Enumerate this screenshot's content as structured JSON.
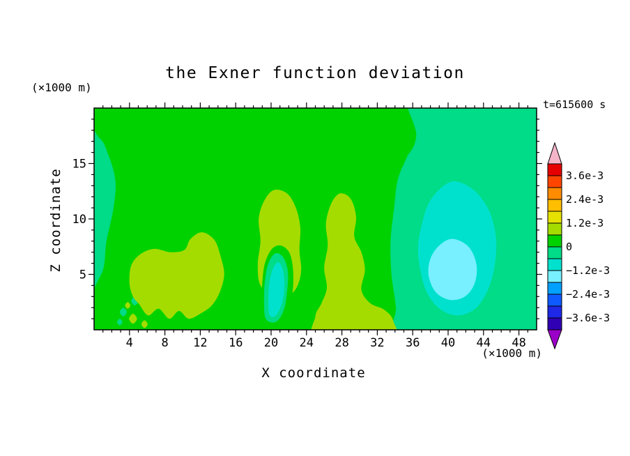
{
  "title": "the Exner function deviation",
  "annotations": {
    "time_label": "t=615600 s",
    "x_unit_label": "(×1000 m)",
    "z_unit_label": "(×1000 m)"
  },
  "axes": {
    "x": {
      "label": "X coordinate",
      "min": 0,
      "max": 50,
      "major_ticks": [
        4,
        8,
        12,
        16,
        20,
        24,
        28,
        32,
        36,
        40,
        44,
        48
      ],
      "minor_step": 1
    },
    "z": {
      "label": "Z coordinate",
      "min": 0,
      "max": 20,
      "major_ticks": [
        5,
        10,
        15
      ],
      "minor_step": 1
    }
  },
  "colorbar": {
    "segments": [
      {
        "from": -0.0042,
        "to": -0.0036,
        "color": "#2F00B4"
      },
      {
        "from": -0.0036,
        "to": -0.003,
        "color": "#1E28E6"
      },
      {
        "from": -0.003,
        "to": -0.0024,
        "color": "#0F5AFF"
      },
      {
        "from": -0.0024,
        "to": -0.0018,
        "color": "#00A0FF"
      },
      {
        "from": -0.0018,
        "to": -0.0012,
        "color": "#78F0FF"
      },
      {
        "from": -0.0012,
        "to": -0.0006,
        "color": "#00E1CD"
      },
      {
        "from": -0.0006,
        "to": 0,
        "color": "#00DC87"
      },
      {
        "from": 0,
        "to": 0.0006,
        "color": "#00D200"
      },
      {
        "from": 0.0006,
        "to": 0.0012,
        "color": "#A5DC00"
      },
      {
        "from": 0.0012,
        "to": 0.0018,
        "color": "#E6E100"
      },
      {
        "from": 0.0018,
        "to": 0.0024,
        "color": "#FFBE00"
      },
      {
        "from": 0.0024,
        "to": 0.003,
        "color": "#FF8C00"
      },
      {
        "from": 0.003,
        "to": 0.0036,
        "color": "#FF4600"
      },
      {
        "from": 0.0036,
        "to": 0.0042,
        "color": "#E60000"
      }
    ],
    "arrow_top_color": "#F5B4C8",
    "arrow_bottom_color": "#9B00C8",
    "labels": [
      {
        "text": "3.6e-3",
        "boundary": 13
      },
      {
        "text": "2.4e-3",
        "boundary": 11
      },
      {
        "text": "1.2e-3",
        "boundary": 9
      },
      {
        "text": "0",
        "boundary": 7
      },
      {
        "text": "−1.2e-3",
        "boundary": 5
      },
      {
        "text": "−2.4e-3",
        "boundary": 3
      },
      {
        "text": "−3.6e-3",
        "boundary": 1
      }
    ]
  },
  "chart_data": {
    "type": "contour",
    "field": "Exner function deviation",
    "time_seconds": 615600,
    "x_range": [
      0,
      50
    ],
    "z_range": [
      0,
      20
    ],
    "x_unit": "×1000 m",
    "z_unit": "×1000 m",
    "contour_interval": 0.0006,
    "contour_levels": [
      -0.0042,
      -0.0036,
      -0.003,
      -0.0024,
      -0.0018,
      -0.0012,
      -0.0006,
      0,
      0.0006,
      0.0012,
      0.0018,
      0.0024,
      0.003,
      0.0036,
      0.0042
    ],
    "background": {
      "band": "0 to 0.0006",
      "color": "#00D200"
    },
    "regions": [
      {
        "name": "right-negative-area",
        "band": "-0.0006 to 0",
        "color": "#00DC87",
        "points": [
          [
            34.6,
            -3
          ],
          [
            34.1,
            2
          ],
          [
            33.6,
            5
          ],
          [
            33.5,
            8
          ],
          [
            33.9,
            11
          ],
          [
            34.3,
            13.5
          ],
          [
            35.3,
            15.5
          ],
          [
            36.4,
            17.5
          ],
          [
            36.3,
            23
          ],
          [
            54,
            24
          ],
          [
            54,
            -4
          ]
        ]
      },
      {
        "name": "right-cyan-blob",
        "band": "-0.0012 to -0.0006",
        "color": "#00E1CD",
        "points": [
          [
            40.8,
            13.4
          ],
          [
            39.2,
            12.8
          ],
          [
            37.8,
            11.4
          ],
          [
            37.0,
            9.4
          ],
          [
            36.6,
            7.4
          ],
          [
            36.9,
            5.2
          ],
          [
            37.7,
            3.2
          ],
          [
            39.2,
            1.8
          ],
          [
            41.2,
            1.3
          ],
          [
            43.2,
            2.0
          ],
          [
            44.6,
            3.8
          ],
          [
            45.3,
            6.0
          ],
          [
            45.4,
            8.4
          ],
          [
            44.6,
            10.8
          ],
          [
            42.9,
            12.6
          ]
        ]
      },
      {
        "name": "right-cyan-core",
        "band": "-0.0018 to -0.0012",
        "color": "#78F0FF",
        "points": [
          [
            40.5,
            8.2
          ],
          [
            39.0,
            7.6
          ],
          [
            38.0,
            6.4
          ],
          [
            37.8,
            4.9
          ],
          [
            38.6,
            3.4
          ],
          [
            40.2,
            2.7
          ],
          [
            41.9,
            3.0
          ],
          [
            43.0,
            4.2
          ],
          [
            43.2,
            5.9
          ],
          [
            42.3,
            7.5
          ]
        ]
      },
      {
        "name": "left-edge-strip",
        "band": "-0.0006 to 0",
        "color": "#00DC87",
        "points": [
          [
            -2,
            3.0
          ],
          [
            0.8,
            5.0
          ],
          [
            1.4,
            8.0
          ],
          [
            2.2,
            11.0
          ],
          [
            2.4,
            13.5
          ],
          [
            1.6,
            15.8
          ],
          [
            0.6,
            17.3
          ],
          [
            -2,
            18.5
          ]
        ]
      },
      {
        "name": "speck-teal-1",
        "band": "-0.0006 to 0",
        "color": "#00DC87",
        "points": [
          [
            3.3,
            2.0
          ],
          [
            3.7,
            1.6
          ],
          [
            3.3,
            1.2
          ],
          [
            2.9,
            1.6
          ]
        ]
      },
      {
        "name": "speck-teal-2",
        "band": "-0.0006 to 0",
        "color": "#00DC87",
        "points": [
          [
            4.6,
            3.0
          ],
          [
            5.0,
            2.6
          ],
          [
            4.6,
            2.2
          ],
          [
            4.2,
            2.6
          ]
        ]
      },
      {
        "name": "speck-teal-3",
        "band": "-0.0006 to 0",
        "color": "#00DC87",
        "points": [
          [
            2.9,
            1.0
          ],
          [
            3.2,
            0.7
          ],
          [
            2.9,
            0.4
          ],
          [
            2.6,
            0.7
          ]
        ]
      },
      {
        "name": "yellowgreen-left-blob",
        "band": "0.0006 to 0.0012",
        "color": "#A5DC00",
        "points": [
          [
            4.0,
            4.2
          ],
          [
            4.2,
            5.8
          ],
          [
            5.2,
            6.8
          ],
          [
            6.8,
            7.3
          ],
          [
            8.6,
            7.0
          ],
          [
            10.2,
            7.2
          ],
          [
            10.9,
            8.2
          ],
          [
            12.2,
            8.8
          ],
          [
            13.6,
            8.1
          ],
          [
            14.3,
            6.6
          ],
          [
            14.7,
            5.0
          ],
          [
            14.2,
            3.4
          ],
          [
            13.3,
            2.2
          ],
          [
            12.1,
            1.5
          ],
          [
            10.7,
            1.0
          ],
          [
            9.6,
            1.7
          ],
          [
            8.5,
            1.0
          ],
          [
            7.3,
            1.9
          ],
          [
            6.1,
            1.3
          ],
          [
            5.1,
            2.3
          ],
          [
            4.4,
            3.0
          ]
        ]
      },
      {
        "name": "speck-yellowgreen-1",
        "band": "0.0006 to 0.0012",
        "color": "#A5DC00",
        "points": [
          [
            4.4,
            1.45
          ],
          [
            4.85,
            1.0
          ],
          [
            4.4,
            0.55
          ],
          [
            3.95,
            1.0
          ]
        ]
      },
      {
        "name": "speck-yellowgreen-2",
        "band": "0.0006 to 0.0012",
        "color": "#A5DC00",
        "points": [
          [
            5.7,
            0.85
          ],
          [
            6.05,
            0.5
          ],
          [
            5.7,
            0.15
          ],
          [
            5.35,
            0.5
          ]
        ]
      },
      {
        "name": "speck-yellowgreen-3",
        "band": "0.0006 to 0.0012",
        "color": "#A5DC00",
        "points": [
          [
            3.8,
            2.5
          ],
          [
            4.1,
            2.2
          ],
          [
            3.8,
            1.9
          ],
          [
            3.5,
            2.2
          ]
        ]
      },
      {
        "name": "yellowgreen-mid-arch",
        "band": "0.0006 to 0.0012",
        "color": "#A5DC00",
        "points": [
          [
            18.7,
            4.2
          ],
          [
            18.5,
            6.0
          ],
          [
            18.8,
            8.0
          ],
          [
            18.6,
            10.0
          ],
          [
            19.2,
            11.6
          ],
          [
            20.3,
            12.6
          ],
          [
            21.8,
            12.3
          ],
          [
            22.8,
            11.0
          ],
          [
            23.3,
            9.2
          ],
          [
            23.2,
            7.2
          ],
          [
            23.4,
            5.4
          ],
          [
            23.0,
            4.0
          ],
          [
            22.2,
            3.2
          ],
          [
            21.0,
            2.9
          ],
          [
            19.8,
            3.1
          ]
        ]
      },
      {
        "name": "mid-green-gap",
        "band": "0 to 0.0006",
        "color": "#00D200",
        "points": [
          [
            19.1,
            0.4
          ],
          [
            18.9,
            2.2
          ],
          [
            19.0,
            4.2
          ],
          [
            19.3,
            6.0
          ],
          [
            20.1,
            7.3
          ],
          [
            21.1,
            7.6
          ],
          [
            22.1,
            6.9
          ],
          [
            22.5,
            5.2
          ],
          [
            22.4,
            3.2
          ],
          [
            21.9,
            1.4
          ],
          [
            20.6,
            0.2
          ]
        ]
      },
      {
        "name": "mid-teal-blob",
        "band": "-0.0006 to 0",
        "color": "#00DC87",
        "points": [
          [
            19.4,
            1.0
          ],
          [
            19.2,
            2.6
          ],
          [
            19.3,
            4.4
          ],
          [
            19.7,
            6.0
          ],
          [
            20.5,
            6.9
          ],
          [
            21.4,
            6.5
          ],
          [
            21.9,
            5.2
          ],
          [
            21.8,
            3.4
          ],
          [
            21.4,
            1.7
          ],
          [
            20.5,
            0.7
          ]
        ]
      },
      {
        "name": "mid-cyan-blob",
        "band": "-0.0012 to -0.0006",
        "color": "#00E1CD",
        "points": [
          [
            19.8,
            1.4
          ],
          [
            19.7,
            2.8
          ],
          [
            19.8,
            4.2
          ],
          [
            20.2,
            5.5
          ],
          [
            20.8,
            6.1
          ],
          [
            21.3,
            5.5
          ],
          [
            21.5,
            4.3
          ],
          [
            21.4,
            3.0
          ],
          [
            21.0,
            1.9
          ],
          [
            20.4,
            1.2
          ]
        ]
      },
      {
        "name": "yellowgreen-right-blob",
        "band": "0.0006 to 0.0012",
        "color": "#A5DC00",
        "points": [
          [
            25.2,
            -1
          ],
          [
            25.0,
            1.2
          ],
          [
            25.7,
            2.4
          ],
          [
            26.3,
            3.8
          ],
          [
            26.0,
            5.6
          ],
          [
            26.4,
            7.6
          ],
          [
            26.2,
            9.6
          ],
          [
            26.8,
            11.4
          ],
          [
            27.8,
            12.3
          ],
          [
            29.0,
            11.8
          ],
          [
            29.6,
            10.2
          ],
          [
            29.4,
            8.4
          ],
          [
            30.2,
            7.0
          ],
          [
            30.6,
            5.4
          ],
          [
            30.2,
            3.6
          ],
          [
            31.2,
            2.4
          ],
          [
            32.8,
            1.8
          ],
          [
            33.8,
            0.8
          ],
          [
            33.6,
            -1
          ]
        ]
      }
    ]
  }
}
